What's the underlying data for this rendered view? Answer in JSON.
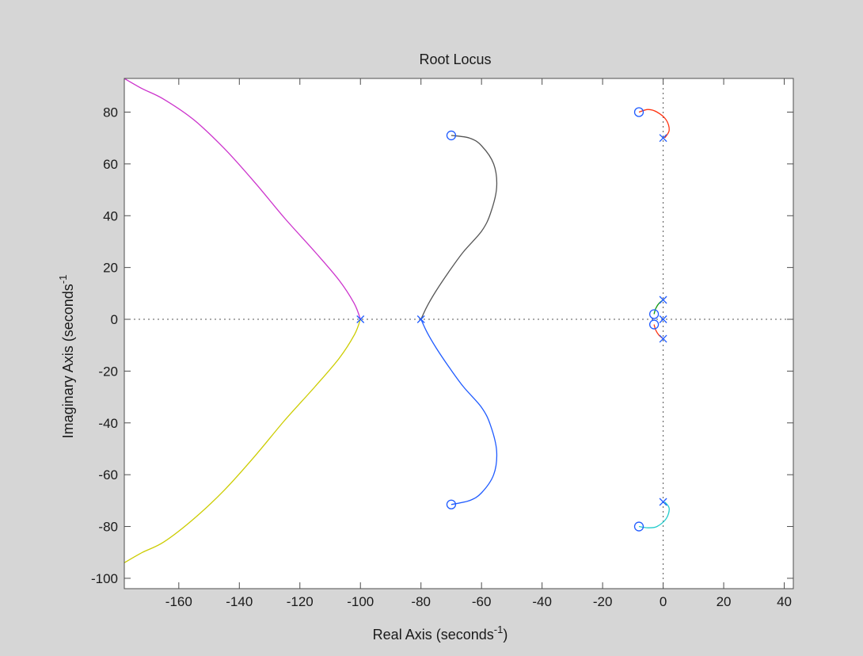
{
  "window": {
    "background": "#d6d6d6"
  },
  "chart_data": {
    "type": "line",
    "title": "Root Locus",
    "xlabel": "Real Axis (seconds",
    "ylabel": "Imaginary Axis (seconds",
    "unit_superscript": "-1",
    "xlabel_close": ")",
    "xlim": [
      -178,
      43
    ],
    "ylim": [
      -104,
      93
    ],
    "xticks": [
      -160,
      -140,
      -120,
      -100,
      -80,
      -60,
      -40,
      -20,
      0,
      20,
      40
    ],
    "yticks": [
      -100,
      -80,
      -60,
      -40,
      -20,
      0,
      20,
      40,
      60,
      80
    ],
    "grid": false,
    "zero_lines": true,
    "series": [
      {
        "color": "#cc33cc",
        "x": [
          -178,
          -172,
          -165,
          -155,
          -145,
          -135,
          -125,
          -115,
          -107,
          -102,
          -100
        ],
        "y": [
          93,
          89,
          85,
          77,
          66,
          53,
          39,
          26,
          15,
          6,
          0
        ]
      },
      {
        "color": "#cccc00",
        "x": [
          -178,
          -172,
          -165,
          -155,
          -145,
          -135,
          -125,
          -115,
          -107,
          -102,
          -100
        ],
        "y": [
          -94,
          -90,
          -86,
          -77,
          -66,
          -53,
          -39,
          -26,
          -15,
          -6,
          0
        ]
      },
      {
        "color": "#555555",
        "x": [
          -80,
          -78,
          -75,
          -71,
          -66,
          -60,
          -57,
          -55,
          -56,
          -60,
          -64,
          -70
        ],
        "y": [
          0,
          5,
          11,
          18,
          26,
          34,
          41,
          51,
          60,
          67,
          70,
          71
        ]
      },
      {
        "color": "#1f5bff",
        "x": [
          -80,
          -78,
          -75,
          -71,
          -66,
          -60,
          -57,
          -55,
          -56,
          -60,
          -64,
          -70
        ],
        "y": [
          0,
          -5,
          -11,
          -18,
          -26,
          -34,
          -41,
          -51,
          -60,
          -67,
          -70,
          -71.5
        ]
      },
      {
        "color": "#ff3311",
        "x": [
          -8,
          -5,
          -2,
          1,
          2,
          0.5
        ],
        "y": [
          80,
          81,
          80,
          77,
          73,
          70
        ]
      },
      {
        "color": "#22cccc",
        "x": [
          -8,
          -5,
          -2,
          1,
          2,
          0.5
        ],
        "y": [
          -80,
          -80.5,
          -80,
          -77,
          -73,
          -70.5
        ]
      },
      {
        "color": "#119911",
        "x": [
          -3,
          -2.5,
          -1.5,
          0
        ],
        "y": [
          2,
          4,
          6,
          7.5
        ]
      },
      {
        "color": "#ff3311",
        "x": [
          -3,
          -2.5,
          -1.5,
          0
        ],
        "y": [
          -2,
          -4,
          -6,
          -7.5
        ]
      }
    ],
    "poles": [
      [
        -100,
        0
      ],
      [
        -80,
        0
      ],
      [
        0,
        70
      ],
      [
        0,
        -70.5
      ],
      [
        0,
        7.5
      ],
      [
        0,
        -7.5
      ],
      [
        0,
        0
      ]
    ],
    "zeros": [
      [
        -70,
        71
      ],
      [
        -70,
        -71.5
      ],
      [
        -8,
        80
      ],
      [
        -8,
        -80
      ],
      [
        -3,
        2
      ],
      [
        -3,
        -2
      ]
    ],
    "marker_color": "#1f5bff"
  }
}
